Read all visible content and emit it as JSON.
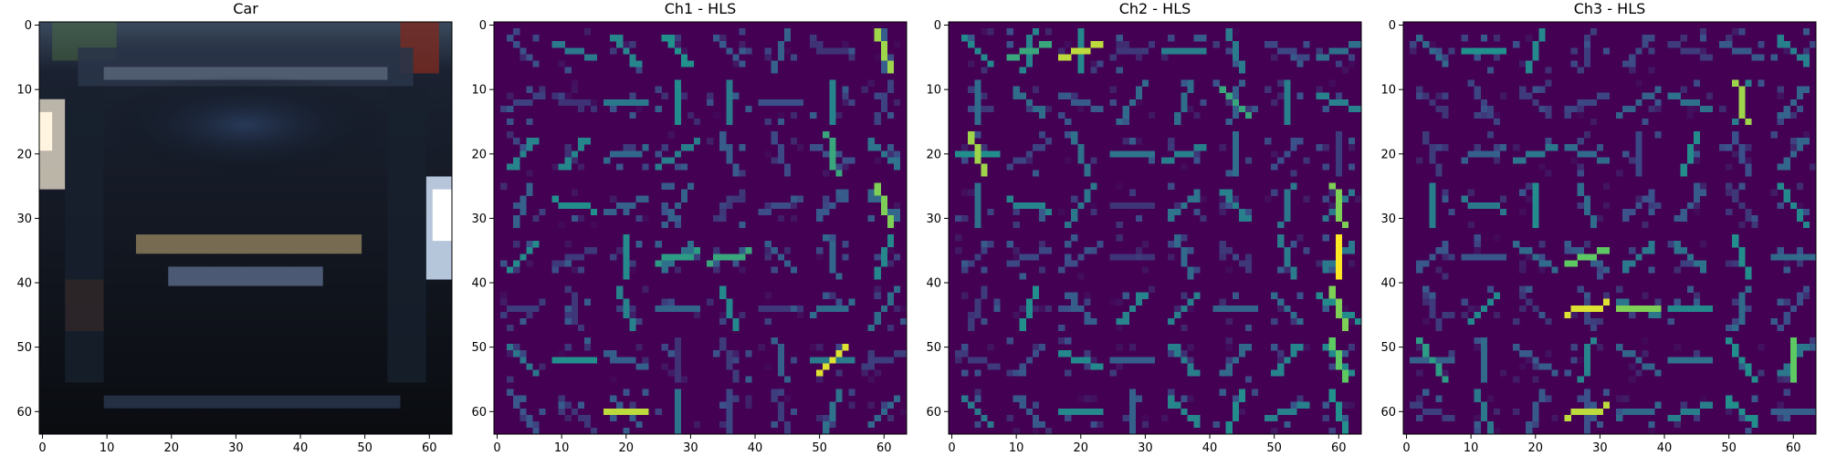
{
  "chart_data": [
    {
      "type": "heatmap",
      "title": "Car",
      "image": "car-rear-thumbnail",
      "xlim": [
        0,
        64
      ],
      "ylim": [
        64,
        0
      ],
      "xticks": [
        "0",
        "10",
        "20",
        "30",
        "40",
        "50",
        "60"
      ],
      "yticks": [
        "0",
        "10",
        "20",
        "30",
        "40",
        "50",
        "60"
      ]
    },
    {
      "type": "heatmap",
      "title": "Ch1 - HLS",
      "image": "hog-visualization",
      "colormap": "viridis",
      "xlim": [
        0,
        64
      ],
      "ylim": [
        64,
        0
      ],
      "xticks": [
        "0",
        "10",
        "20",
        "30",
        "40",
        "50",
        "60"
      ],
      "yticks": [
        "0",
        "10",
        "20",
        "30",
        "40",
        "50",
        "60"
      ]
    },
    {
      "type": "heatmap",
      "title": "Ch2 - HLS",
      "image": "hog-visualization",
      "colormap": "viridis",
      "xlim": [
        0,
        64
      ],
      "ylim": [
        64,
        0
      ],
      "xticks": [
        "0",
        "10",
        "20",
        "30",
        "40",
        "50",
        "60"
      ],
      "yticks": [
        "0",
        "10",
        "20",
        "30",
        "40",
        "50",
        "60"
      ]
    },
    {
      "type": "heatmap",
      "title": "Ch3 - HLS",
      "image": "hog-visualization",
      "colormap": "viridis",
      "xlim": [
        0,
        64
      ],
      "ylim": [
        64,
        0
      ],
      "xticks": [
        "0",
        "10",
        "20",
        "30",
        "40",
        "50",
        "60"
      ],
      "yticks": [
        "0",
        "10",
        "20",
        "30",
        "40",
        "50",
        "60"
      ]
    }
  ],
  "colors": {
    "viridis_low": "#440154",
    "viridis_mid": "#21918c",
    "viridis_high": "#fde725",
    "car_body": "#0d1117"
  }
}
